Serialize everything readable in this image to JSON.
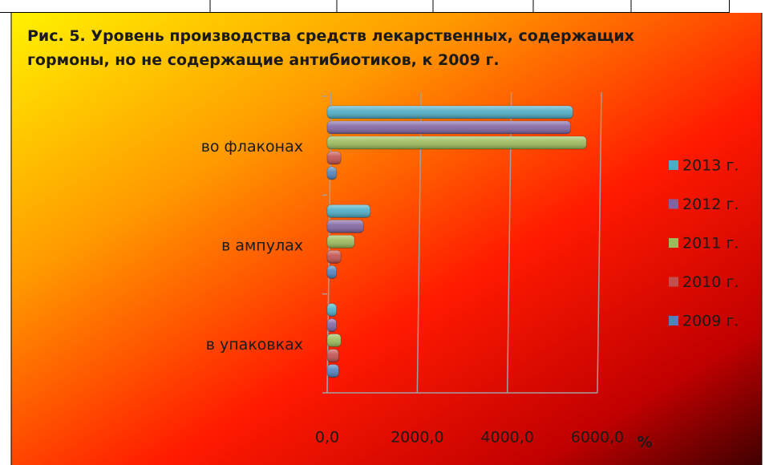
{
  "chart_data": {
    "type": "bar",
    "orientation": "horizontal",
    "title": "Рис. 5.  Уровень производства средств  лекарственных, содержащих\n гормоны, но не содержащие антибиотиков,  к 2009 г.",
    "categories": [
      "во флаконах",
      "в ампулах",
      "в упаковках"
    ],
    "series": [
      {
        "name": "2009 г.",
        "color": "#4f81bd",
        "values": [
          100,
          100,
          150
        ]
      },
      {
        "name": "2010 г.",
        "color": "#c0504d",
        "values": [
          200,
          200,
          150
        ]
      },
      {
        "name": "2011 г.",
        "color": "#9bbb59",
        "values": [
          5650,
          500,
          200
        ]
      },
      {
        "name": "2012 г.",
        "color": "#8064a2",
        "values": [
          5300,
          700,
          100
        ]
      },
      {
        "name": "2013 г.",
        "color": "#4bacc6",
        "values": [
          5350,
          850,
          100
        ]
      }
    ],
    "xlim": [
      0,
      6000
    ],
    "xticks": [
      {
        "value": 0,
        "label": "0,0"
      },
      {
        "value": 2000,
        "label": "2000,0"
      },
      {
        "value": 4000,
        "label": "4000,0"
      },
      {
        "value": 6000,
        "label": "6000,0"
      }
    ],
    "xlabel": "%",
    "grid": true,
    "legend": "right"
  }
}
